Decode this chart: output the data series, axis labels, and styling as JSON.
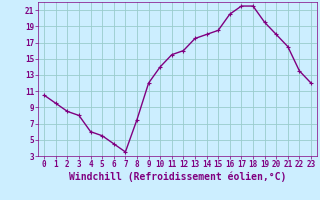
{
  "x": [
    0,
    1,
    2,
    3,
    4,
    5,
    6,
    7,
    8,
    9,
    10,
    11,
    12,
    13,
    14,
    15,
    16,
    17,
    18,
    19,
    20,
    21,
    22,
    23
  ],
  "y": [
    10.5,
    9.5,
    8.5,
    8,
    6,
    5.5,
    4.5,
    3.5,
    7.5,
    12,
    14,
    15.5,
    16,
    17.5,
    18,
    18.5,
    20.5,
    21.5,
    21.5,
    19.5,
    18,
    16.5,
    13.5,
    12
  ],
  "line_color": "#800080",
  "marker": "+",
  "marker_size": 3,
  "bg_color": "#cceeff",
  "grid_color": "#99cccc",
  "xlabel": "Windchill (Refroidissement éolien,°C)",
  "xlabel_color": "#800080",
  "xlim": [
    -0.5,
    23.5
  ],
  "ylim": [
    3,
    22
  ],
  "yticks": [
    3,
    5,
    7,
    9,
    11,
    13,
    15,
    17,
    19,
    21
  ],
  "xticks": [
    0,
    1,
    2,
    3,
    4,
    5,
    6,
    7,
    8,
    9,
    10,
    11,
    12,
    13,
    14,
    15,
    16,
    17,
    18,
    19,
    20,
    21,
    22,
    23
  ],
  "tick_color": "#800080",
  "tick_label_fontsize": 5.5,
  "xlabel_fontsize": 7,
  "line_width": 1.0,
  "marker_edge_width": 0.8
}
